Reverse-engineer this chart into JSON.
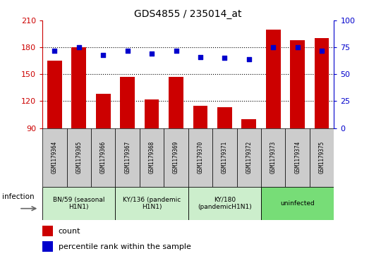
{
  "title": "GDS4855 / 235014_at",
  "samples": [
    "GSM1179364",
    "GSM1179365",
    "GSM1179366",
    "GSM1179367",
    "GSM1179368",
    "GSM1179369",
    "GSM1179370",
    "GSM1179371",
    "GSM1179372",
    "GSM1179373",
    "GSM1179374",
    "GSM1179375"
  ],
  "counts": [
    165,
    180,
    128,
    147,
    122,
    147,
    115,
    113,
    100,
    200,
    188,
    190
  ],
  "percentiles": [
    72,
    75,
    68,
    72,
    69,
    72,
    66,
    65,
    64,
    75,
    75,
    72
  ],
  "ylim_left": [
    90,
    210
  ],
  "ylim_right": [
    0,
    100
  ],
  "yticks_left": [
    90,
    120,
    150,
    180,
    210
  ],
  "yticks_right": [
    0,
    25,
    50,
    75,
    100
  ],
  "bar_color": "#cc0000",
  "dot_color": "#0000cc",
  "groups": [
    {
      "label": "BN/59 (seasonal\nH1N1)",
      "start": 0,
      "end": 2,
      "color": "#cceecc"
    },
    {
      "label": "KY/136 (pandemic\nH1N1)",
      "start": 3,
      "end": 5,
      "color": "#cceecc"
    },
    {
      "label": "KY/180\n(pandemicH1N1)",
      "start": 6,
      "end": 8,
      "color": "#cceecc"
    },
    {
      "label": "uninfected",
      "start": 9,
      "end": 11,
      "color": "#77dd77"
    }
  ],
  "infection_label": "infection",
  "legend_count": "count",
  "legend_percentile": "percentile rank within the sample",
  "bg_color": "#ffffff",
  "tick_box_color": "#cccccc"
}
